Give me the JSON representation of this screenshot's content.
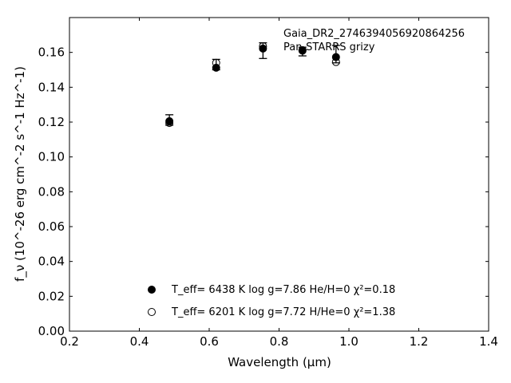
{
  "chart_data": {
    "type": "scatter",
    "xlabel": "Wavelength (μm)",
    "ylabel": "f_ν (10^-26 erg cm^-2 s^-1 Hz^-1)",
    "xlim": [
      0.2,
      1.4
    ],
    "ylim": [
      0.0,
      0.18
    ],
    "x_ticks": [
      "0.2",
      "0.4",
      "0.6",
      "0.8",
      "1.0",
      "1.2",
      "1.4"
    ],
    "y_ticks": [
      "0.00",
      "0.02",
      "0.04",
      "0.06",
      "0.08",
      "0.10",
      "0.12",
      "0.14",
      "0.16"
    ],
    "annotations": [
      "Gaia_DR2_2746394056920864256",
      "Pan-STARRS grizy"
    ],
    "observed": {
      "x": [
        0.486,
        0.62,
        0.754,
        0.867,
        0.963
      ],
      "y": [
        0.1212,
        0.153,
        0.161,
        0.1605,
        0.159
      ],
      "yerr": [
        0.003,
        0.003,
        0.0045,
        0.0025,
        0.005
      ]
    },
    "series": [
      {
        "legend_label": "T_eff= 6438 K  log g=7.86  He/H=0  χ²=0.18",
        "marker": "filled-circle",
        "x": [
          0.486,
          0.62,
          0.754,
          0.867,
          0.963
        ],
        "y": [
          0.1205,
          0.1512,
          0.1622,
          0.1613,
          0.1573
        ]
      },
      {
        "legend_label": "T_eff= 6201 K  log g=7.72  H/He=0  χ²=1.38",
        "marker": "open-circle",
        "x": [
          0.486,
          0.62,
          0.754,
          0.867,
          0.963
        ],
        "y": [
          0.1195,
          0.154,
          0.1635,
          0.161,
          0.1545
        ]
      }
    ],
    "legend_position": "bottom-center",
    "grid": false
  }
}
